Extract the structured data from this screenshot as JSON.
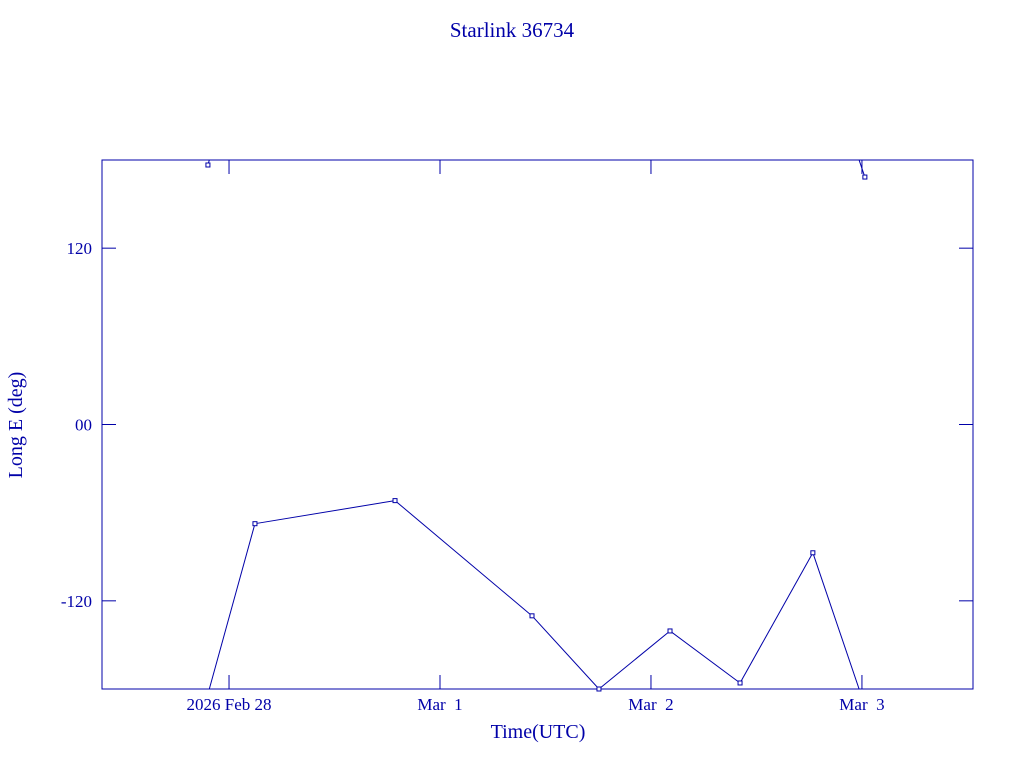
{
  "chart_data": {
    "type": "line",
    "title": "Starlink 36734",
    "x_label": "Time(UTC)",
    "y_label": "Long E (deg)",
    "x": [
      "2026-02-27T21:36",
      "2026-02-28T02:57",
      "2026-02-28T18:53",
      "2026-03-01T10:28",
      "2026-03-01T18:05",
      "2026-03-02T02:10",
      "2026-03-02T10:08",
      "2026-03-02T18:25",
      "2026-03-03T00:20"
    ],
    "series": [
      {
        "name": "Long E",
        "color": "#0000a8",
        "values": [
          176.6,
          -67.5,
          -51.8,
          -130.2,
          -180,
          -140.5,
          -175.9,
          -87.3,
          168.4
        ]
      }
    ],
    "xlim": [
      "2026-02-27T09:33",
      "2026-03-03T12:38"
    ],
    "xticks": [
      {
        "value": "2026-02-28",
        "label": "2026 Feb 28"
      },
      {
        "value": "2026-03-01",
        "label": "Mar  1"
      },
      {
        "value": "2026-03-02",
        "label": "Mar  2"
      },
      {
        "value": "2026-03-03",
        "label": "Mar  3"
      }
    ],
    "ylim": [
      -180,
      180
    ],
    "yticks": [
      -120,
      {
        "value": 0,
        "label": "00"
      },
      120
    ],
    "wrap": 360,
    "grid": false
  }
}
